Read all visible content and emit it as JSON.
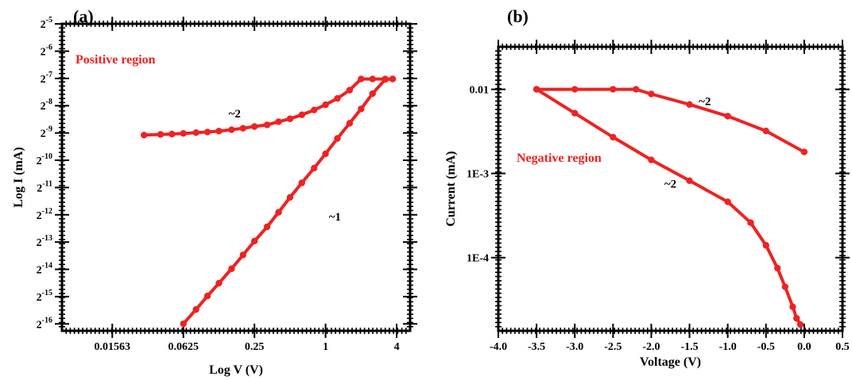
{
  "chart_data": [
    {
      "panel_label": "(a)",
      "type": "scatter",
      "xlabel": "Log V (V)",
      "ylabel": "Log I (mA)",
      "x_scale": "log2",
      "y_scale": "log2",
      "xlim": [
        0.00586,
        5.2
      ],
      "ylim": [
        1.28e-05,
        0.0313
      ],
      "x_ticks": [
        {
          "value": 0.015625,
          "label": "0.01563"
        },
        {
          "value": 0.0625,
          "label": "0.0625"
        },
        {
          "value": 0.25,
          "label": "0.25"
        },
        {
          "value": 1,
          "label": "1"
        },
        {
          "value": 4,
          "label": "4"
        }
      ],
      "y_ticks": [
        {
          "exp": -5,
          "base": "2",
          "sup": "-5"
        },
        {
          "exp": -6,
          "base": "2",
          "sup": "-6"
        },
        {
          "exp": -7,
          "base": "2",
          "sup": "-7"
        },
        {
          "exp": -8,
          "base": "2",
          "sup": "-8"
        },
        {
          "exp": -9,
          "base": "2",
          "sup": "-9"
        },
        {
          "exp": -10,
          "base": "2",
          "sup": "-10"
        },
        {
          "exp": -11,
          "base": "2",
          "sup": "-11"
        },
        {
          "exp": -12,
          "base": "2",
          "sup": "-12"
        },
        {
          "exp": -13,
          "base": "2",
          "sup": "-13"
        },
        {
          "exp": -14,
          "base": "2",
          "sup": "-14"
        },
        {
          "exp": -15,
          "base": "2",
          "sup": "-15"
        },
        {
          "exp": -16,
          "base": "2",
          "sup": "-16"
        }
      ],
      "region_label": "Positive region",
      "annotations": [
        {
          "text": "~2",
          "x": 0.17,
          "y": 0.0029
        },
        {
          "text": "~1",
          "x": 1.2,
          "y": 0.00021
        }
      ],
      "color": "#ee2222",
      "series": [
        {
          "x": [
            0.0625,
            0.08,
            0.1,
            0.125,
            0.16,
            0.2,
            0.25,
            0.32,
            0.4,
            0.5,
            0.63,
            0.8,
            1.0,
            1.26,
            1.6,
            2.0,
            2.5,
            3.2,
            3.7
          ],
          "y": [
            1.53e-05,
            2.2e-05,
            3.1e-05,
            4.3e-05,
            6.2e-05,
            8.8e-05,
            0.000125,
            0.00018,
            0.00026,
            0.00038,
            0.00055,
            0.0008,
            0.00115,
            0.0017,
            0.0025,
            0.0036,
            0.0053,
            0.0076,
            0.0077
          ]
        },
        {
          "x": [
            0.029,
            0.04,
            0.05,
            0.0625,
            0.08,
            0.1,
            0.125,
            0.16,
            0.2,
            0.25,
            0.32,
            0.4,
            0.5,
            0.63,
            0.8,
            1.0,
            1.26,
            1.6,
            2.0,
            2.5,
            3.2,
            3.7
          ],
          "y": [
            0.00185,
            0.00188,
            0.0019,
            0.00193,
            0.00197,
            0.002,
            0.00205,
            0.00212,
            0.0022,
            0.0023,
            0.0024,
            0.0026,
            0.0028,
            0.0031,
            0.0035,
            0.004,
            0.0047,
            0.0058,
            0.0077,
            0.0077,
            0.0077,
            0.0077
          ]
        }
      ]
    },
    {
      "panel_label": "(b)",
      "type": "scatter",
      "xlabel": "Voltage (V)",
      "ylabel": "Current (mA)",
      "y_scale": "log10",
      "xlim": [
        -4.0,
        0.5
      ],
      "ylim": [
        1.35e-05,
        0.032
      ],
      "x_ticks": [
        {
          "value": -4.0,
          "label": "-4.0"
        },
        {
          "value": -3.5,
          "label": "-3.5"
        },
        {
          "value": -3.0,
          "label": "-3.0"
        },
        {
          "value": -2.5,
          "label": "-2.5"
        },
        {
          "value": -2.0,
          "label": "-2.0"
        },
        {
          "value": -1.5,
          "label": "-1.5"
        },
        {
          "value": -1.0,
          "label": "-1.0"
        },
        {
          "value": -0.5,
          "label": "-0.5"
        },
        {
          "value": 0.0,
          "label": "0.0"
        },
        {
          "value": 0.5,
          "label": "0.5"
        }
      ],
      "y_ticks": [
        {
          "value": 0.01,
          "label": "0.01"
        },
        {
          "value": 0.001,
          "label": "1E-3"
        },
        {
          "value": 0.0001,
          "label": "1E-4"
        }
      ],
      "region_label": "Negative region",
      "annotations": [
        {
          "text": "~2",
          "x": -1.3,
          "y": 0.0065
        },
        {
          "text": "~2",
          "x": -1.75,
          "y": 0.00068
        }
      ],
      "color": "#ee2222",
      "series": [
        {
          "x": [
            -3.5,
            -3.0,
            -2.5,
            -2.2,
            -2.0,
            -1.5,
            -1.0,
            -0.5,
            0.0
          ],
          "y": [
            0.01,
            0.01,
            0.01,
            0.01,
            0.0088,
            0.0066,
            0.0048,
            0.0032,
            0.0018
          ]
        },
        {
          "x": [
            -3.5,
            -3.0,
            -2.5,
            -2.0,
            -1.5,
            -1.0,
            -0.7,
            -0.5,
            -0.35,
            -0.25,
            -0.15,
            -0.1,
            -0.05
          ],
          "y": [
            0.01,
            0.0052,
            0.0027,
            0.00145,
            0.00082,
            0.00046,
            0.00026,
            0.00014,
            7.5e-05,
            4.5e-05,
            2.6e-05,
            1.9e-05,
            1.6e-05
          ]
        }
      ]
    }
  ]
}
